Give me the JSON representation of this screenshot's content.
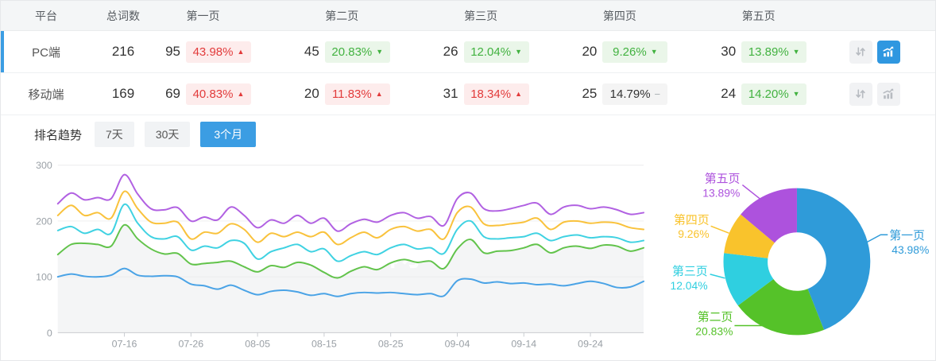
{
  "accent": "#3b9de3",
  "watermark": "爱站网",
  "table": {
    "headers": [
      "平台",
      "总词数",
      "第一页",
      "第二页",
      "第三页",
      "第四页",
      "第五页"
    ],
    "rows": [
      {
        "platform": "PC端",
        "total": "216",
        "selected": true,
        "chart_active": true,
        "pages": [
          {
            "count": "95",
            "pct": "43.98%",
            "dir": "up"
          },
          {
            "count": "45",
            "pct": "20.83%",
            "dir": "down"
          },
          {
            "count": "26",
            "pct": "12.04%",
            "dir": "down"
          },
          {
            "count": "20",
            "pct": "9.26%",
            "dir": "down"
          },
          {
            "count": "30",
            "pct": "13.89%",
            "dir": "down"
          }
        ]
      },
      {
        "platform": "移动端",
        "total": "169",
        "selected": false,
        "chart_active": false,
        "pages": [
          {
            "count": "69",
            "pct": "40.83%",
            "dir": "up"
          },
          {
            "count": "20",
            "pct": "11.83%",
            "dir": "up"
          },
          {
            "count": "31",
            "pct": "18.34%",
            "dir": "up"
          },
          {
            "count": "25",
            "pct": "14.79%",
            "dir": "flat"
          },
          {
            "count": "24",
            "pct": "14.20%",
            "dir": "down"
          }
        ]
      }
    ]
  },
  "trend": {
    "label": "排名趋势",
    "tabs": [
      {
        "label": "7天",
        "active": false
      },
      {
        "label": "30天",
        "active": false
      },
      {
        "label": "3个月",
        "active": true
      }
    ]
  },
  "chart_data": [
    {
      "type": "line",
      "name": "ranking-trend-3-months",
      "x_start_date": "07-06",
      "x_step_days": 2,
      "x_tick_labels": [
        "07-16",
        "07-26",
        "08-05",
        "08-15",
        "08-25",
        "09-04",
        "09-14",
        "09-24"
      ],
      "x_tick_days": [
        10,
        20,
        30,
        40,
        50,
        60,
        70,
        80
      ],
      "ylim": [
        0,
        300
      ],
      "yticks": [
        0,
        100,
        200,
        300
      ],
      "grid": true,
      "legend": "none",
      "note": "stacked cumulative keyword counts, values sampled every 2 days",
      "series": [
        {
          "name": "第一页",
          "color": "#4aa3e6",
          "values": [
            100,
            105,
            101,
            100,
            103,
            115,
            103,
            101,
            102,
            100,
            87,
            84,
            78,
            85,
            76,
            68,
            74,
            76,
            73,
            67,
            70,
            65,
            70,
            72,
            71,
            72,
            70,
            68,
            70,
            66,
            93,
            96,
            89,
            91,
            88,
            89,
            86,
            87,
            84,
            88,
            92,
            88,
            81,
            82,
            92
          ]
        },
        {
          "name": "第二页",
          "color": "#62c34b",
          "area_fill": "#f4f5f6",
          "values": [
            140,
            158,
            160,
            158,
            155,
            193,
            168,
            150,
            141,
            142,
            123,
            124,
            126,
            128,
            118,
            109,
            120,
            117,
            126,
            121,
            108,
            98,
            110,
            118,
            113,
            125,
            131,
            126,
            128,
            115,
            150,
            167,
            143,
            146,
            147,
            152,
            158,
            143,
            152,
            155,
            151,
            157,
            155,
            146,
            152
          ]
        },
        {
          "name": "第三页",
          "color": "#3fd2e2",
          "values": [
            183,
            190,
            178,
            185,
            178,
            230,
            196,
            172,
            168,
            172,
            148,
            155,
            152,
            165,
            160,
            132,
            145,
            152,
            158,
            145,
            150,
            128,
            138,
            145,
            140,
            152,
            158,
            150,
            152,
            142,
            185,
            200,
            172,
            168,
            170,
            172,
            178,
            165,
            172,
            175,
            170,
            172,
            170,
            162,
            165
          ]
        },
        {
          "name": "第四页",
          "color": "#f9c23c",
          "values": [
            210,
            228,
            210,
            215,
            205,
            253,
            222,
            198,
            196,
            198,
            168,
            180,
            178,
            195,
            185,
            162,
            178,
            172,
            180,
            172,
            180,
            158,
            170,
            180,
            170,
            185,
            190,
            182,
            185,
            168,
            215,
            225,
            195,
            192,
            195,
            198,
            205,
            185,
            198,
            200,
            196,
            198,
            196,
            188,
            185
          ]
        },
        {
          "name": "第五页",
          "color": "#b161e2",
          "values": [
            231,
            250,
            238,
            242,
            240,
            283,
            248,
            222,
            220,
            224,
            200,
            207,
            202,
            225,
            210,
            188,
            202,
            196,
            210,
            196,
            205,
            182,
            195,
            203,
            198,
            210,
            215,
            205,
            208,
            192,
            240,
            250,
            222,
            218,
            222,
            228,
            232,
            212,
            225,
            228,
            222,
            225,
            220,
            212,
            215
          ]
        }
      ]
    },
    {
      "type": "pie",
      "name": "page-distribution-donut",
      "donut": true,
      "labels": [
        "第一页",
        "第二页",
        "第三页",
        "第四页",
        "第五页"
      ],
      "values": [
        43.98,
        20.83,
        12.04,
        9.26,
        13.89
      ],
      "value_labels": [
        "43.98%",
        "20.83%",
        "12.04%",
        "9.26%",
        "13.89%"
      ],
      "colors": [
        "#2f9bd9",
        "#55c229",
        "#2fcfe0",
        "#f9c32c",
        "#ad52dd"
      ],
      "start_angle": "12-oclock-clockwise"
    }
  ]
}
